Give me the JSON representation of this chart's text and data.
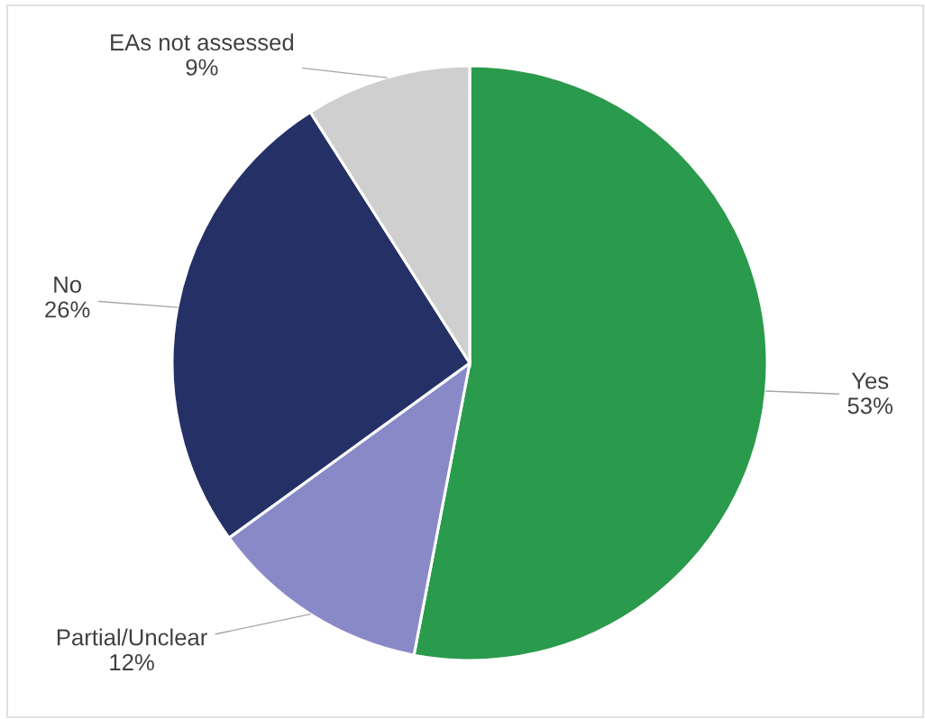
{
  "chart_data": {
    "type": "pie",
    "categories": [
      "Yes",
      "Partial/Unclear",
      "No",
      "EAs not assessed"
    ],
    "values": [
      53,
      12,
      26,
      9
    ],
    "colors": [
      "#2a9a4c",
      "#8a89c8",
      "#253166",
      "#d0cfd0"
    ],
    "value_labels": [
      "53%",
      "12%",
      "26%",
      "9%"
    ]
  }
}
